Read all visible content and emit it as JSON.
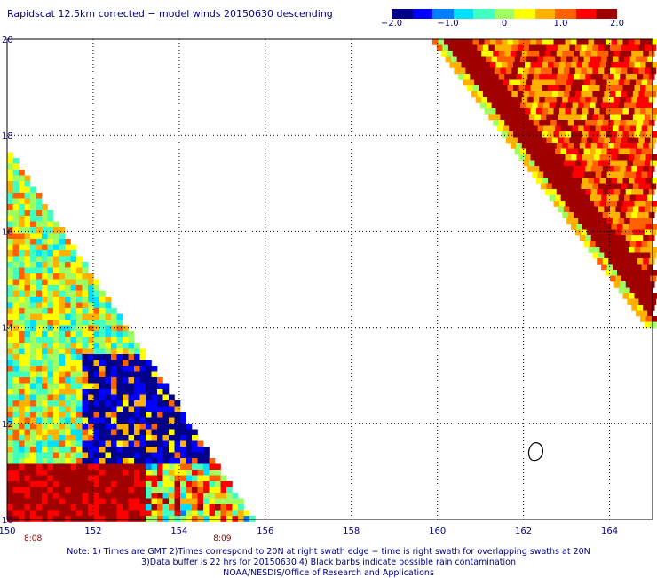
{
  "title": "Rapidscat 12.5km corrected − model winds 20150630 descending",
  "colorbar": {
    "min": -2.0,
    "max": 2.0,
    "labels": [
      "−2.0",
      "−1.0",
      "0",
      "1.0",
      "2.0"
    ],
    "label_values": [
      -2.0,
      -1.0,
      0,
      1.0,
      2.0
    ],
    "colors": [
      "#00008b",
      "#0000ff",
      "#0080ff",
      "#00e0ff",
      "#40ffc0",
      "#a0ff60",
      "#ffff00",
      "#ffb000",
      "#ff6000",
      "#ff0000",
      "#a00000"
    ]
  },
  "map": {
    "lon_range": [
      150,
      165
    ],
    "lat_range": [
      10,
      20
    ],
    "lon_ticks": [
      {
        "value": 150,
        "label": "150"
      },
      {
        "value": 152,
        "label": "152"
      },
      {
        "value": 154,
        "label": "154"
      },
      {
        "value": 156,
        "label": "156"
      },
      {
        "value": 158,
        "label": "158"
      },
      {
        "value": 160,
        "label": "160"
      },
      {
        "value": 162,
        "label": "162"
      },
      {
        "value": 164,
        "label": "164"
      }
    ],
    "lat_ticks": [
      {
        "value": 20,
        "label": "20"
      },
      {
        "value": 18,
        "label": "18"
      },
      {
        "value": 16,
        "label": "16"
      },
      {
        "value": 14,
        "label": "14"
      },
      {
        "value": 12,
        "label": "12"
      },
      {
        "value": 10,
        "label": "10"
      }
    ],
    "time_labels": [
      {
        "lon": 150.6,
        "text": "8:08"
      },
      {
        "lon": 155.0,
        "text": "8:09"
      }
    ],
    "island": {
      "lon": 162.3,
      "lat": 11.4
    }
  },
  "notes": [
    "Note: 1) Times are GMT 2)Times correspond to 20N at right swath edge − time is right swath for overlapping swaths at 20N",
    "3)Data buffer is 22 hrs for 20150630 4) Black barbs indicate possible rain contamination",
    "NOAA/NESDIS/Office of Research and Applications"
  ]
}
